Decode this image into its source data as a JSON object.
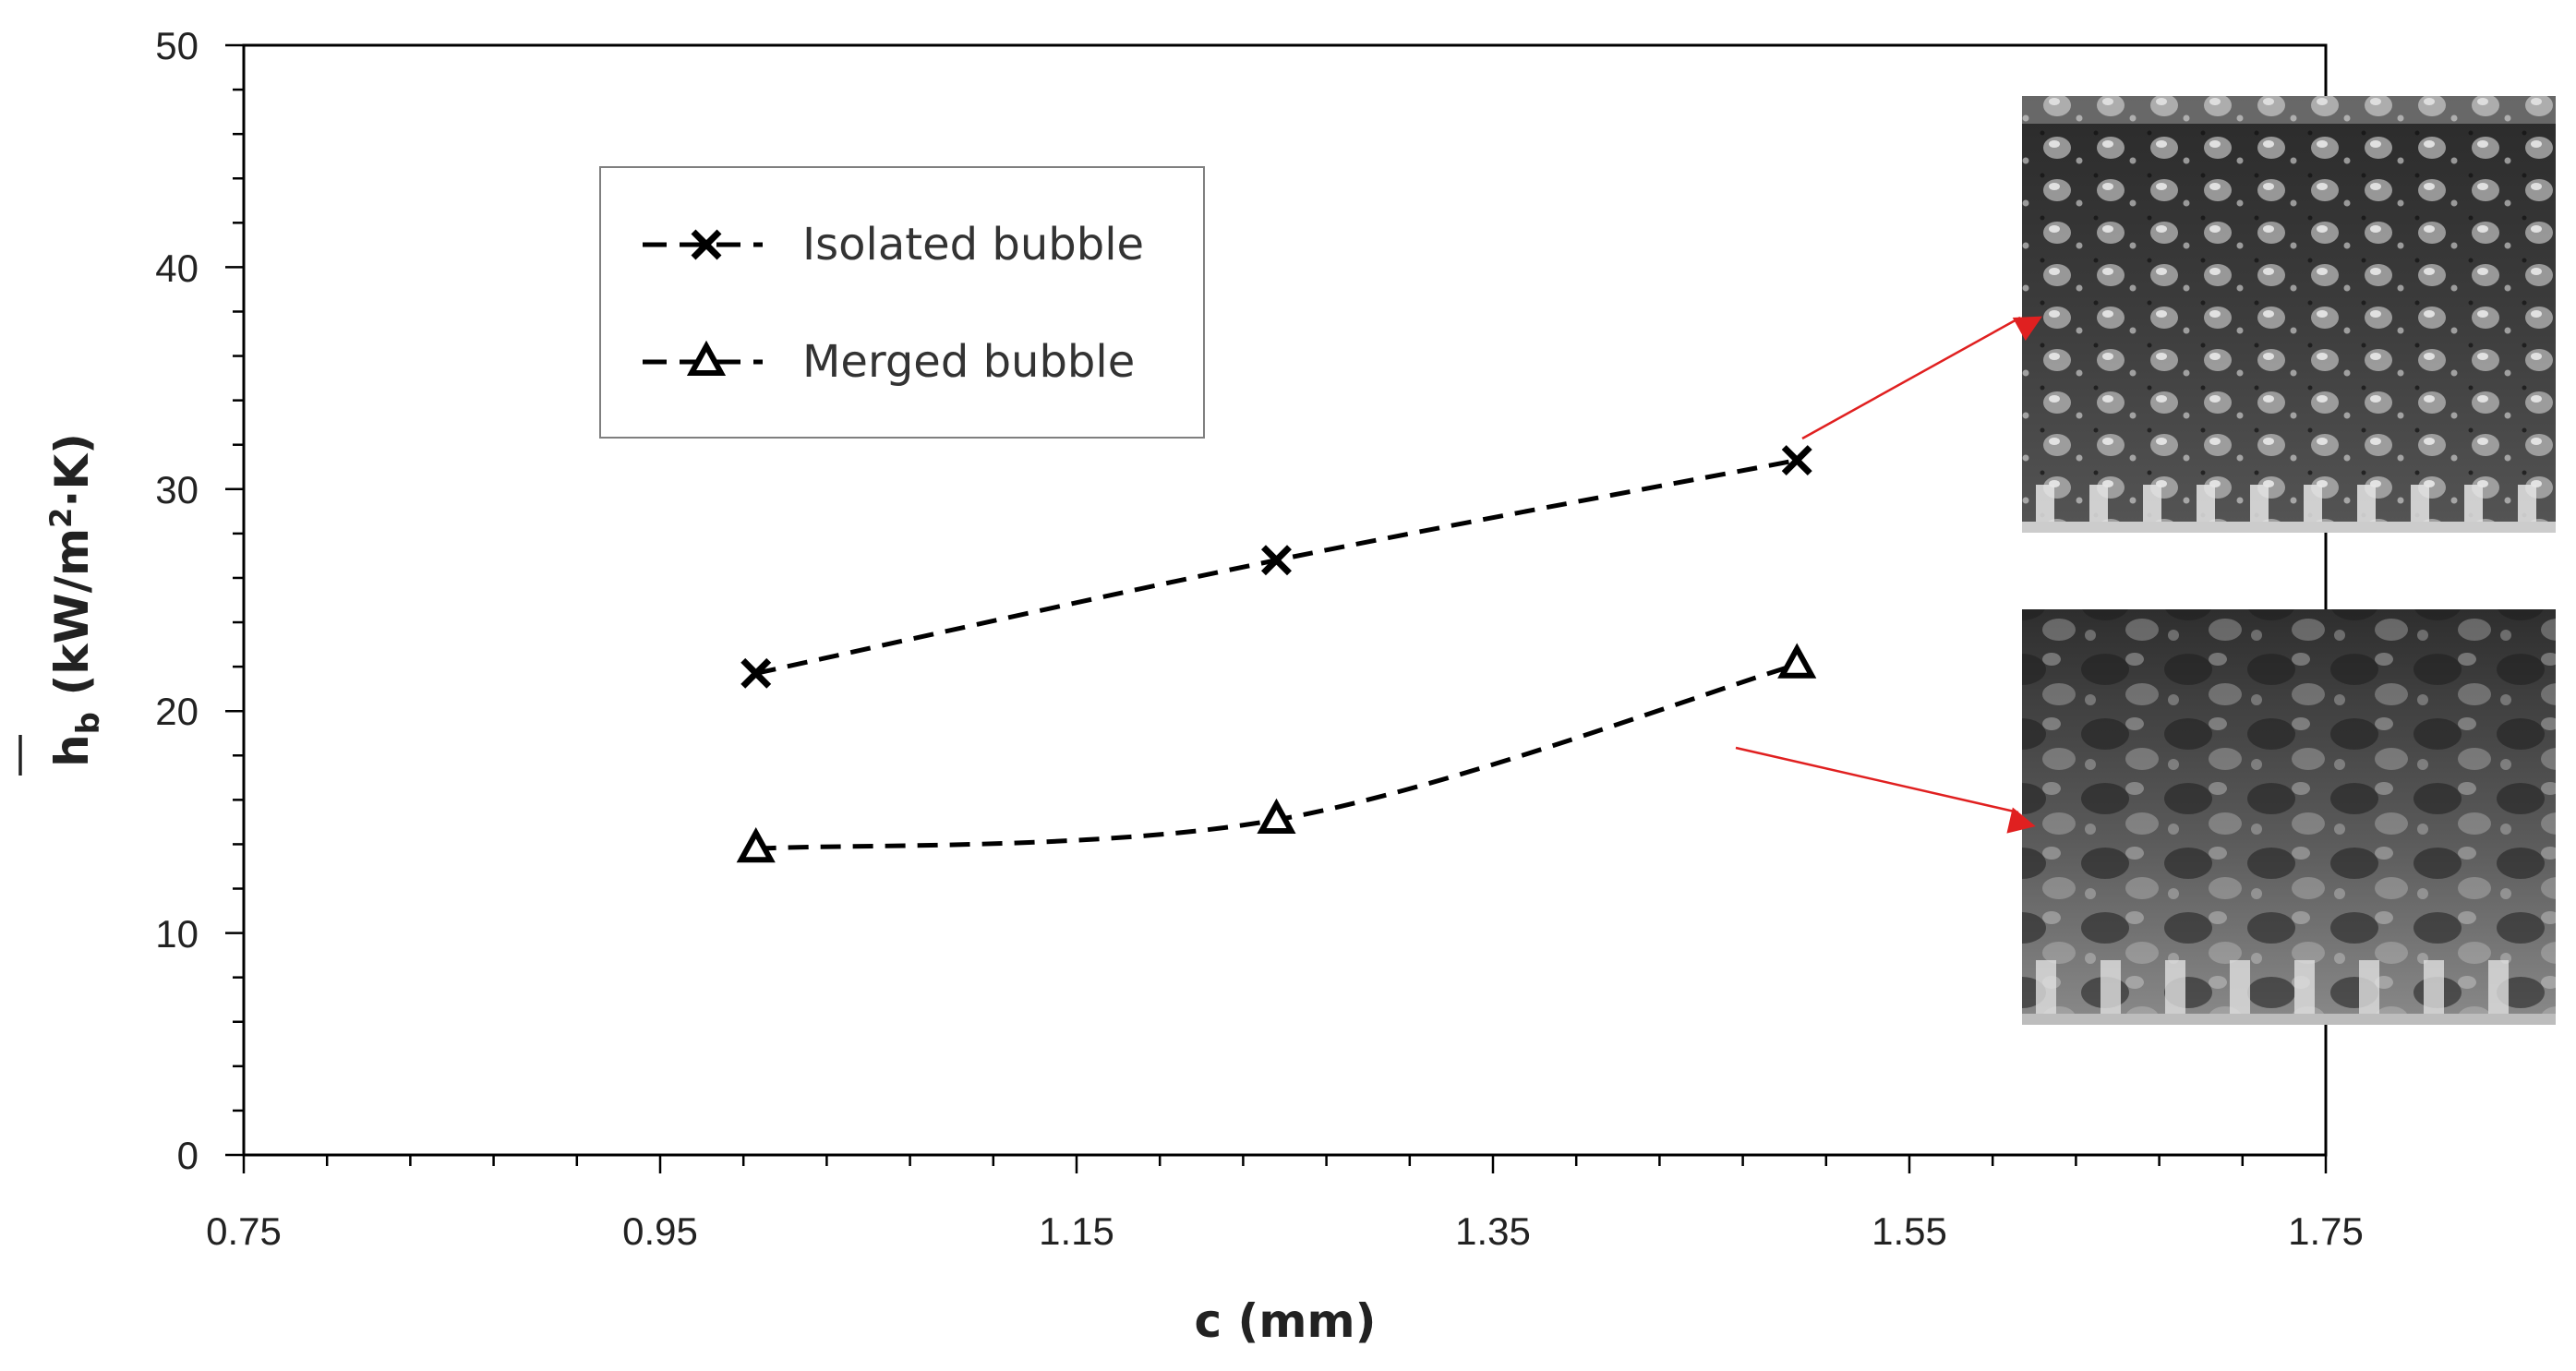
{
  "chart_data": {
    "type": "line",
    "xlabel": "c (mm)",
    "ylabel": {
      "main": "h",
      "sub": "b",
      "units_pre": " (kW/m",
      "units_sup": "2",
      "units_post": "·K)"
    },
    "xlim": [
      0.75,
      1.75
    ],
    "ylim": [
      0,
      50
    ],
    "x_ticks": [
      "0.75",
      "0.95",
      "1.15",
      "1.35",
      "1.55",
      "1.75"
    ],
    "y_ticks": [
      "0",
      "10",
      "20",
      "30",
      "40",
      "50"
    ],
    "grid": false,
    "legend_position": "upper-left",
    "series": [
      {
        "name": "Isolated bubble",
        "marker": "x",
        "line_style": "dashed",
        "x": [
          0.996,
          1.246,
          1.496
        ],
        "y": [
          21.7,
          26.8,
          31.3
        ]
      },
      {
        "name": "Merged bubble",
        "marker": "triangle",
        "line_style": "dashed",
        "x": [
          0.996,
          1.246,
          1.496
        ],
        "y": [
          13.8,
          15.1,
          22.1
        ]
      }
    ],
    "annotations": [
      {
        "label": "isolated-bubble-photo",
        "points_to": "Isolated bubble",
        "arrow_color": "#e02020"
      },
      {
        "label": "merged-bubble-photo",
        "points_to": "Merged bubble",
        "arrow_color": "#e02020"
      }
    ]
  }
}
